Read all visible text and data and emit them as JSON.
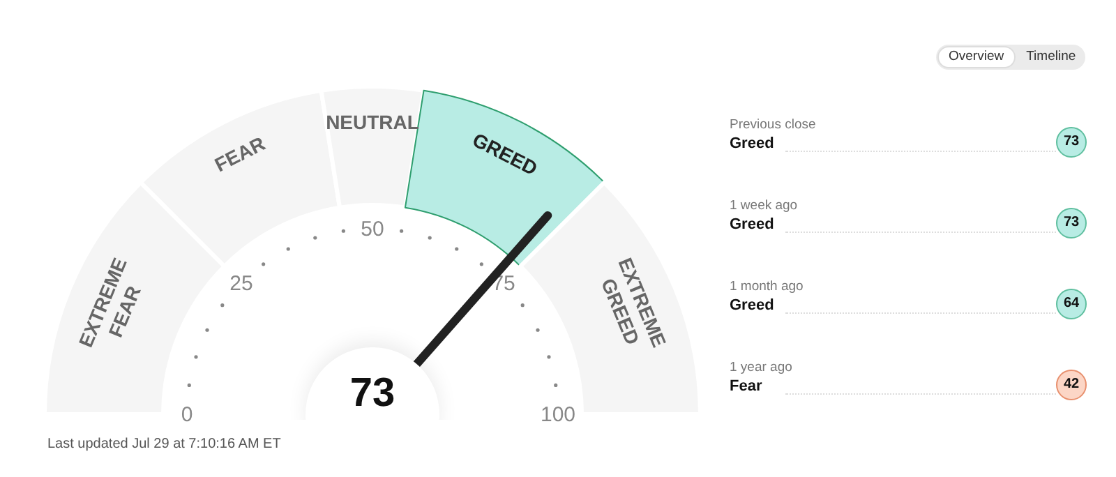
{
  "chart_data": [
    {
      "type": "donut",
      "categories": [
        "EXTREME FEAR",
        "FEAR",
        "NEUTRAL",
        "GREED",
        "EXTREME GREED"
      ],
      "values": [
        25,
        20,
        10,
        20,
        25
      ],
      "colors": [
        "#f5f5f5",
        "#f5f5f5",
        "#f5f5f5",
        "#b8ece4",
        "#f5f5f5"
      ],
      "needle": "GREED",
      "annotations": [
        "73",
        "Last updated Jul 29 at 7:10:16 AM ET",
        "0",
        "25",
        "50",
        "75",
        "100"
      ]
    },
    {
      "type": "other",
      "annotations": [
        "Overview",
        "Timeline",
        "Previous close",
        "Greed",
        "73",
        "1 week ago",
        "Greed",
        "73",
        "1 month ago",
        "Greed",
        "64",
        "1 year ago",
        "Fear",
        "42"
      ]
    }
  ]
}
